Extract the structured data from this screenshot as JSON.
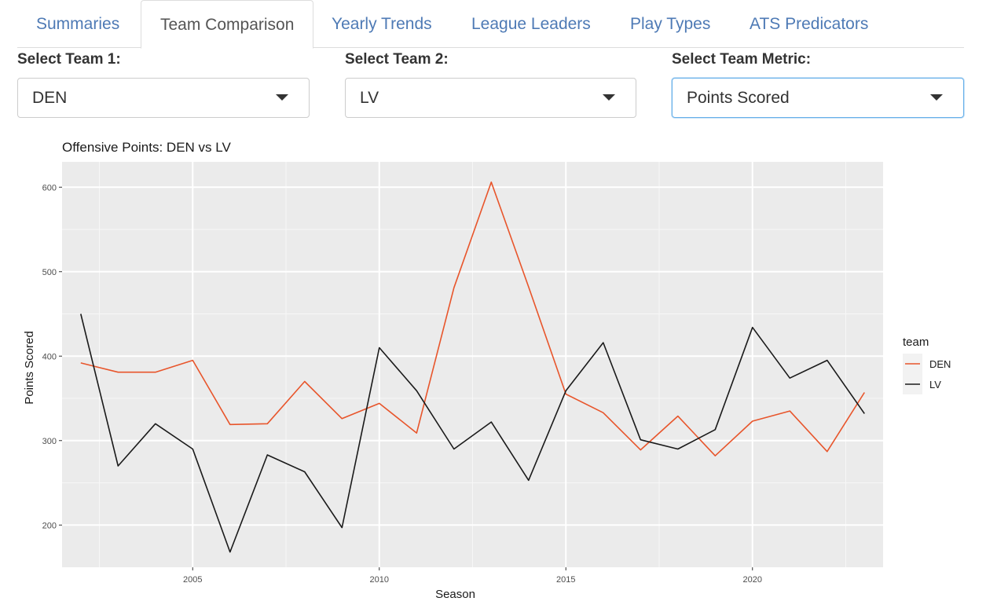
{
  "tabs": [
    {
      "label": "Summaries",
      "active": false
    },
    {
      "label": "Team Comparison",
      "active": true
    },
    {
      "label": "Yearly Trends",
      "active": false
    },
    {
      "label": "League Leaders",
      "active": false
    },
    {
      "label": "Play Types",
      "active": false
    },
    {
      "label": "ATS Predicators",
      "active": false
    }
  ],
  "selects": {
    "team1": {
      "label": "Select Team 1:",
      "value": "DEN"
    },
    "team2": {
      "label": "Select Team 2:",
      "value": "LV"
    },
    "metric": {
      "label": "Select Team Metric:",
      "value": "Points Scored"
    }
  },
  "chart_data": {
    "type": "line",
    "title": "Offensive Points:  DEN  vs  LV",
    "xlabel": "Season",
    "ylabel": "Points Scored",
    "xlim": [
      2001.5,
      2023.5
    ],
    "ylim": [
      150,
      630
    ],
    "x_ticks": [
      2005,
      2010,
      2015,
      2020
    ],
    "y_ticks": [
      200,
      300,
      400,
      500,
      600
    ],
    "grid": true,
    "legend": {
      "title": "team",
      "position": "right"
    },
    "x": [
      2002,
      2003,
      2004,
      2005,
      2006,
      2007,
      2008,
      2009,
      2010,
      2011,
      2012,
      2013,
      2014,
      2015,
      2016,
      2017,
      2018,
      2019,
      2020,
      2021,
      2022,
      2023
    ],
    "series": [
      {
        "name": "DEN",
        "color": "#e8552b",
        "values": [
          392,
          381,
          381,
          395,
          319,
          320,
          370,
          326,
          344,
          309,
          481,
          606,
          482,
          355,
          333,
          289,
          329,
          282,
          323,
          335,
          287,
          357
        ]
      },
      {
        "name": "LV",
        "color": "#1a1a1a",
        "values": [
          450,
          270,
          320,
          290,
          168,
          283,
          263,
          197,
          410,
          359,
          290,
          322,
          253,
          359,
          416,
          301,
          290,
          313,
          434,
          374,
          395,
          332
        ]
      }
    ]
  }
}
